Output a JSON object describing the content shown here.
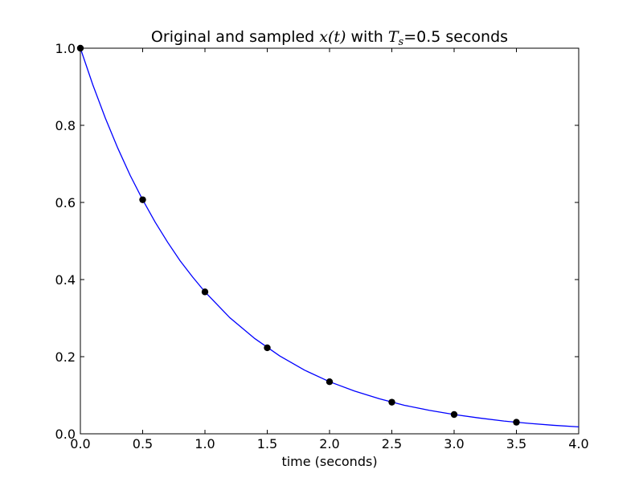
{
  "chart_data": {
    "type": "line",
    "title": {
      "prefix": "Original and sampled ",
      "math_func": "x(t)",
      "middle": " with ",
      "math_var": "T",
      "math_sub": "s",
      "suffix": "=0.5 seconds"
    },
    "xlabel": "time (seconds)",
    "ylabel": "",
    "xlim": [
      0.0,
      4.0
    ],
    "ylim": [
      0.0,
      1.0
    ],
    "x_ticks": [
      0.0,
      0.5,
      1.0,
      1.5,
      2.0,
      2.5,
      3.0,
      3.5,
      4.0
    ],
    "x_tick_labels": [
      "0.0",
      "0.5",
      "1.0",
      "1.5",
      "2.0",
      "2.5",
      "3.0",
      "3.5",
      "4.0"
    ],
    "y_ticks": [
      0.0,
      0.2,
      0.4,
      0.6,
      0.8,
      1.0
    ],
    "y_tick_labels": [
      "0.0",
      "0.2",
      "0.4",
      "0.6",
      "0.8",
      "1.0"
    ],
    "grid": false,
    "legend": "none",
    "series": [
      {
        "kind": "line",
        "color": "#0000ff",
        "x": [
          0.0,
          0.1,
          0.2,
          0.3,
          0.4,
          0.5,
          0.6,
          0.7,
          0.8,
          0.9,
          1.0,
          1.2,
          1.4,
          1.6,
          1.8,
          2.0,
          2.2,
          2.4,
          2.6,
          2.8,
          3.0,
          3.2,
          3.4,
          3.6,
          3.8,
          4.0
        ],
        "y": [
          1.0,
          0.905,
          0.819,
          0.741,
          0.67,
          0.607,
          0.549,
          0.497,
          0.449,
          0.407,
          0.368,
          0.301,
          0.247,
          0.202,
          0.165,
          0.135,
          0.111,
          0.091,
          0.074,
          0.061,
          0.05,
          0.041,
          0.033,
          0.027,
          0.022,
          0.018
        ]
      },
      {
        "kind": "points",
        "color": "#000000",
        "x": [
          0.0,
          0.5,
          1.0,
          1.5,
          2.0,
          2.5,
          3.0,
          3.5
        ],
        "y": [
          1.0,
          0.607,
          0.368,
          0.223,
          0.135,
          0.082,
          0.05,
          0.03
        ]
      }
    ]
  }
}
